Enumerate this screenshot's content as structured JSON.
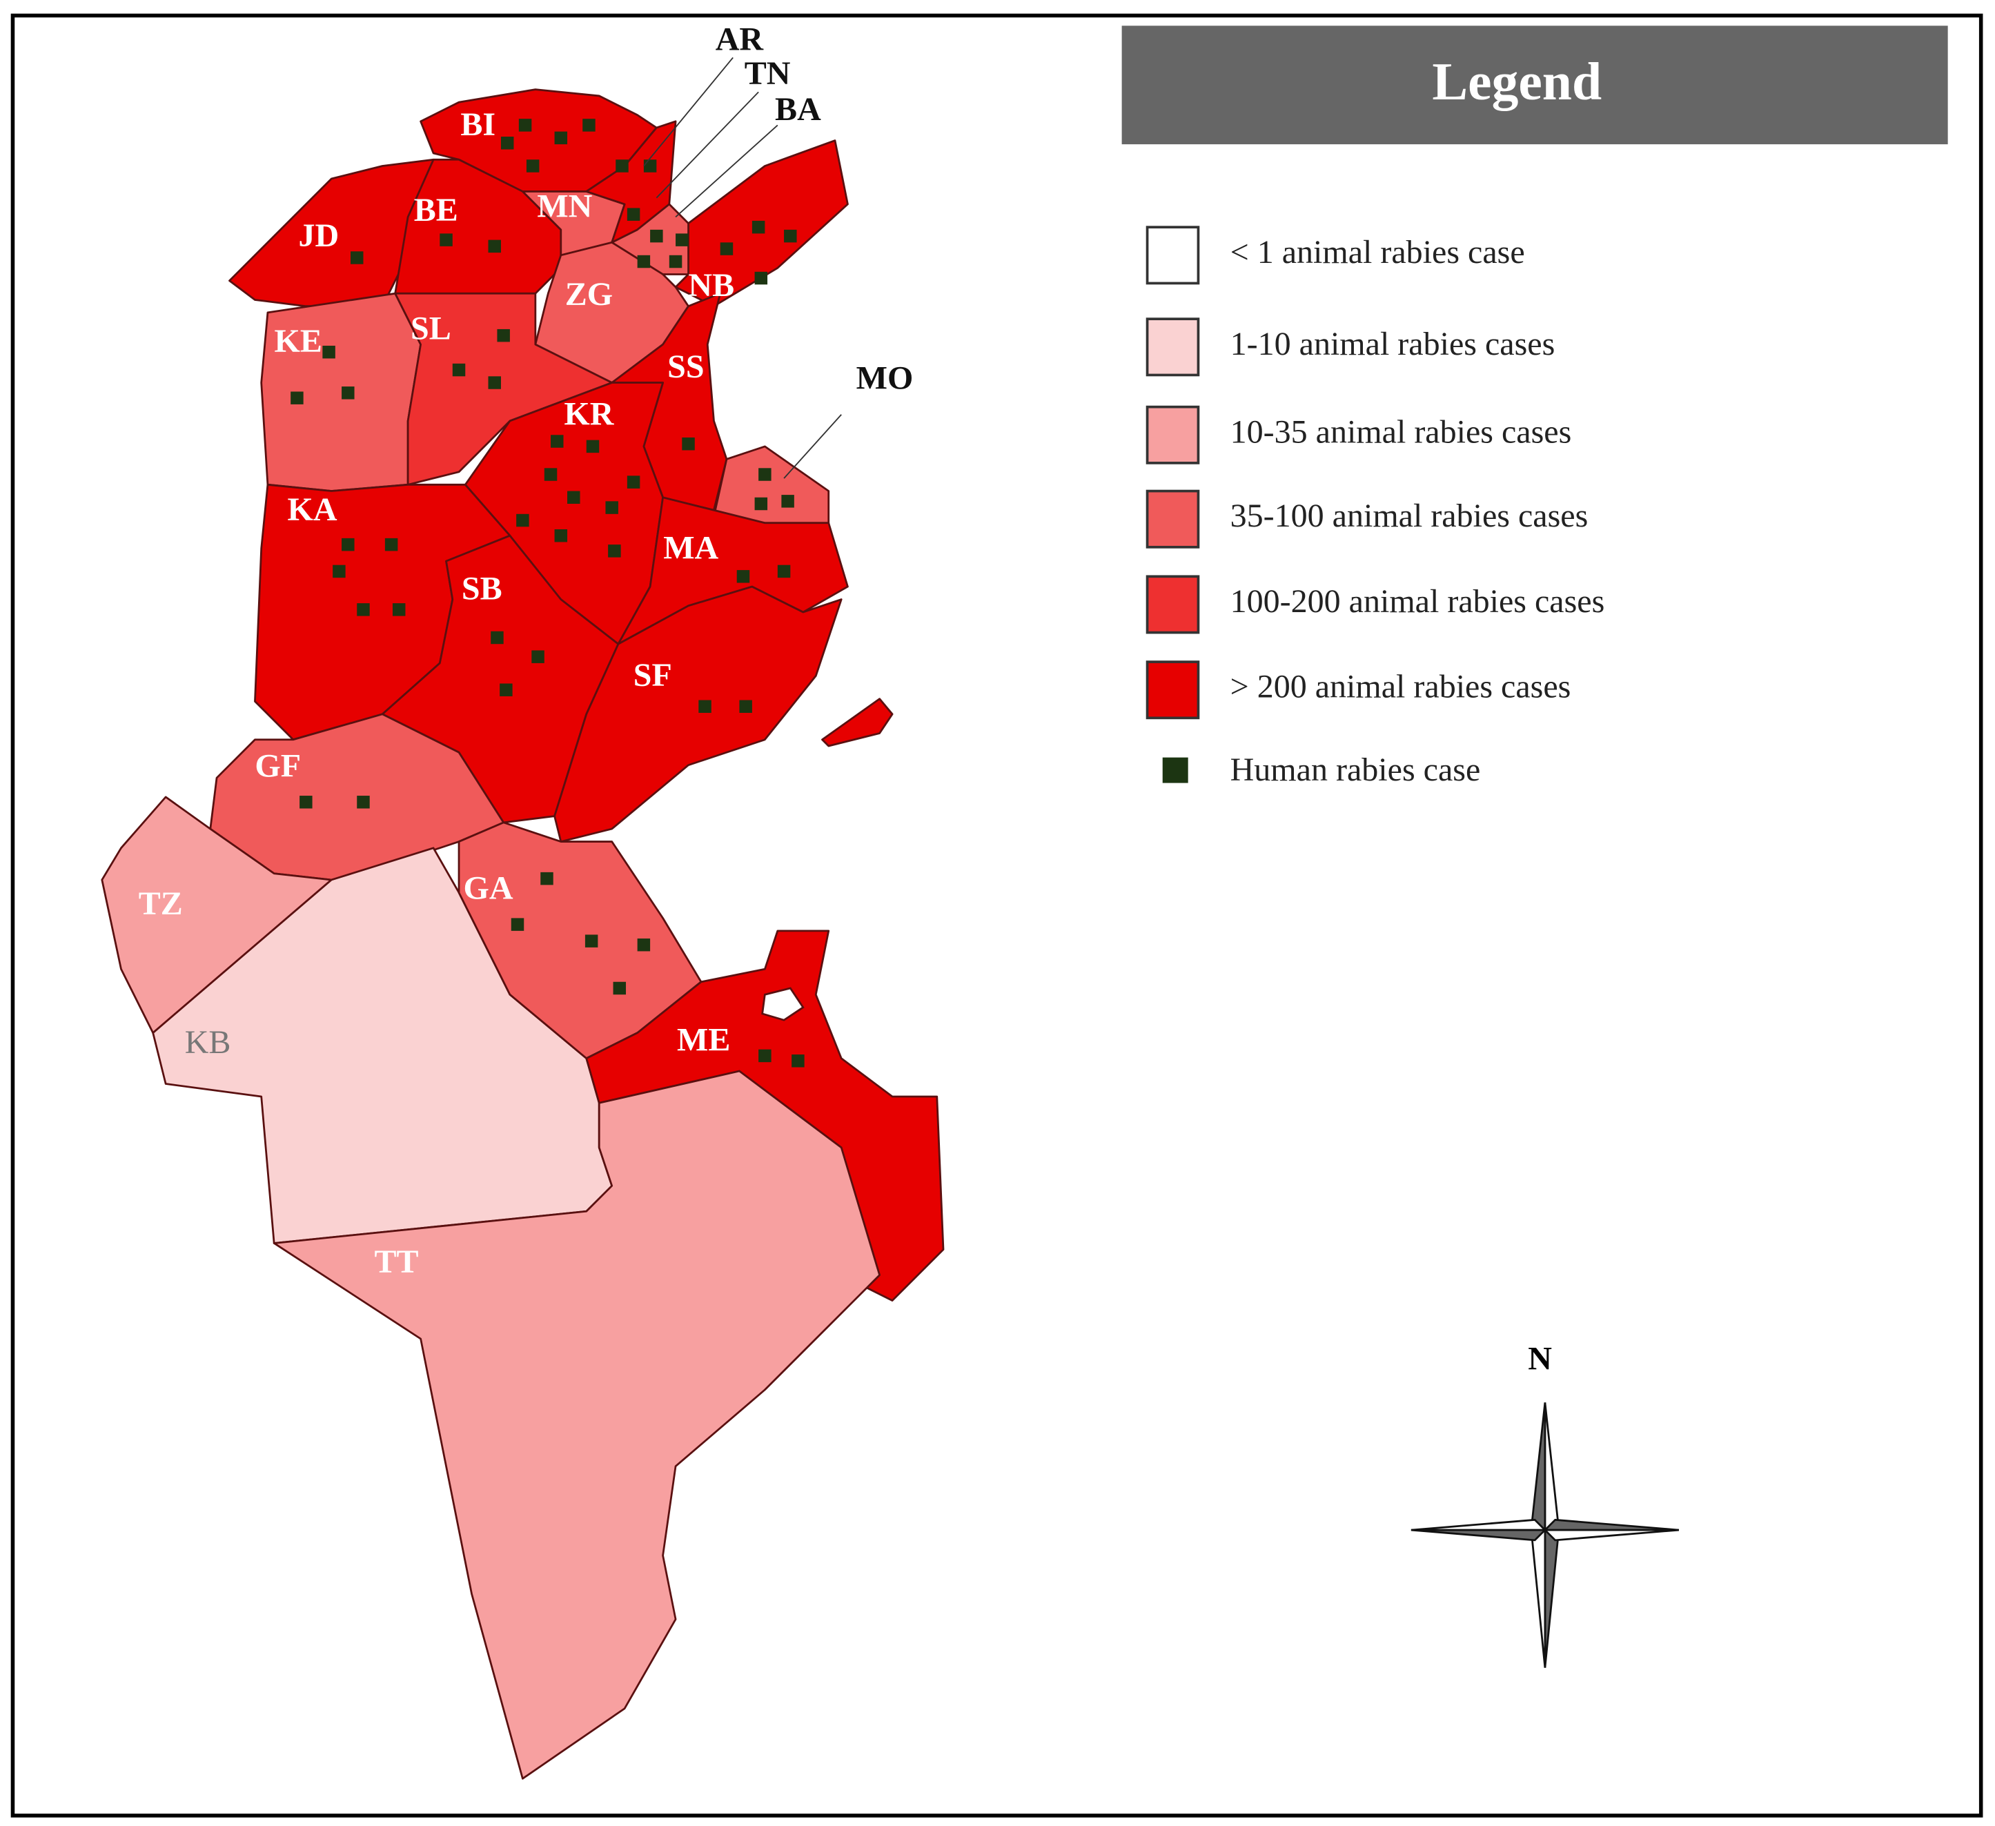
{
  "regions": [
    "BI",
    "AR",
    "TN",
    "BA",
    "JD",
    "BE",
    "MN",
    "NB",
    "ZG",
    "KE",
    "SL",
    "SS",
    "MO",
    "KR",
    "KA",
    "MA",
    "SB",
    "SF",
    "GF",
    "TZ",
    "GA",
    "KB",
    "ME",
    "TT"
  ],
  "legend": {
    "title": "Legend",
    "items": [
      {
        "label": "< 1 animal rabies case",
        "color": "#ffffff"
      },
      {
        "label": "1-10 animal rabies cases",
        "color": "#fad2d2"
      },
      {
        "label": "10-35 animal rabies cases",
        "color": "#f7a0a0"
      },
      {
        "label": "35-100 animal rabies cases",
        "color": "#f05a5a"
      },
      {
        "label": "100-200 animal rabies cases",
        "color": "#ee3030"
      },
      {
        "label": "> 200 animal rabies cases",
        "color": "#e60000"
      }
    ],
    "marker": {
      "label": "Human rabies case",
      "color": "#1c3512"
    }
  },
  "compass": {
    "label": "N"
  }
}
